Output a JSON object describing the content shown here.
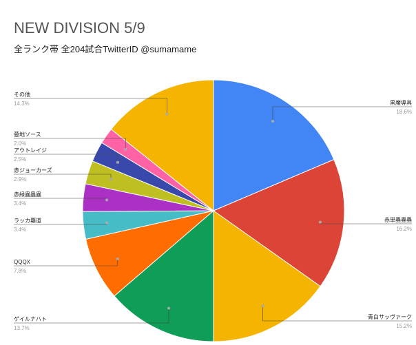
{
  "chart_data": {
    "type": "pie",
    "title": "NEW DIVISION 5/9",
    "subtitle": "全ランク帯 全204試合TwitterID @sumamame",
    "categories": [
      "黒魔導具",
      "赤単蟲蟲蟲",
      "青白サッヴァーク",
      "ゲイルナハト",
      "QQQX",
      "ラッカ覇道",
      "赤緑蟲蟲蟲",
      "赤ジョーカーズ",
      "アウトレイジ",
      "墓地ソース",
      "その他"
    ],
    "values": [
      18.6,
      16.2,
      15.2,
      13.7,
      7.8,
      3.4,
      3.4,
      2.9,
      2.5,
      2.0,
      14.3
    ],
    "value_labels": [
      "18.6%",
      "16.2%",
      "15.2%",
      "13.7%",
      "7.8%",
      "3.4%",
      "3.4%",
      "2.9%",
      "2.5%",
      "2.0%",
      "14.3%"
    ],
    "colors": [
      "#4285f4",
      "#db4437",
      "#f4b400",
      "#0f9d58",
      "#ff6d00",
      "#46bdc6",
      "#ab30c4",
      "#c0bf22",
      "#3949ab",
      "#ff63a5",
      "#f4b400"
    ]
  }
}
